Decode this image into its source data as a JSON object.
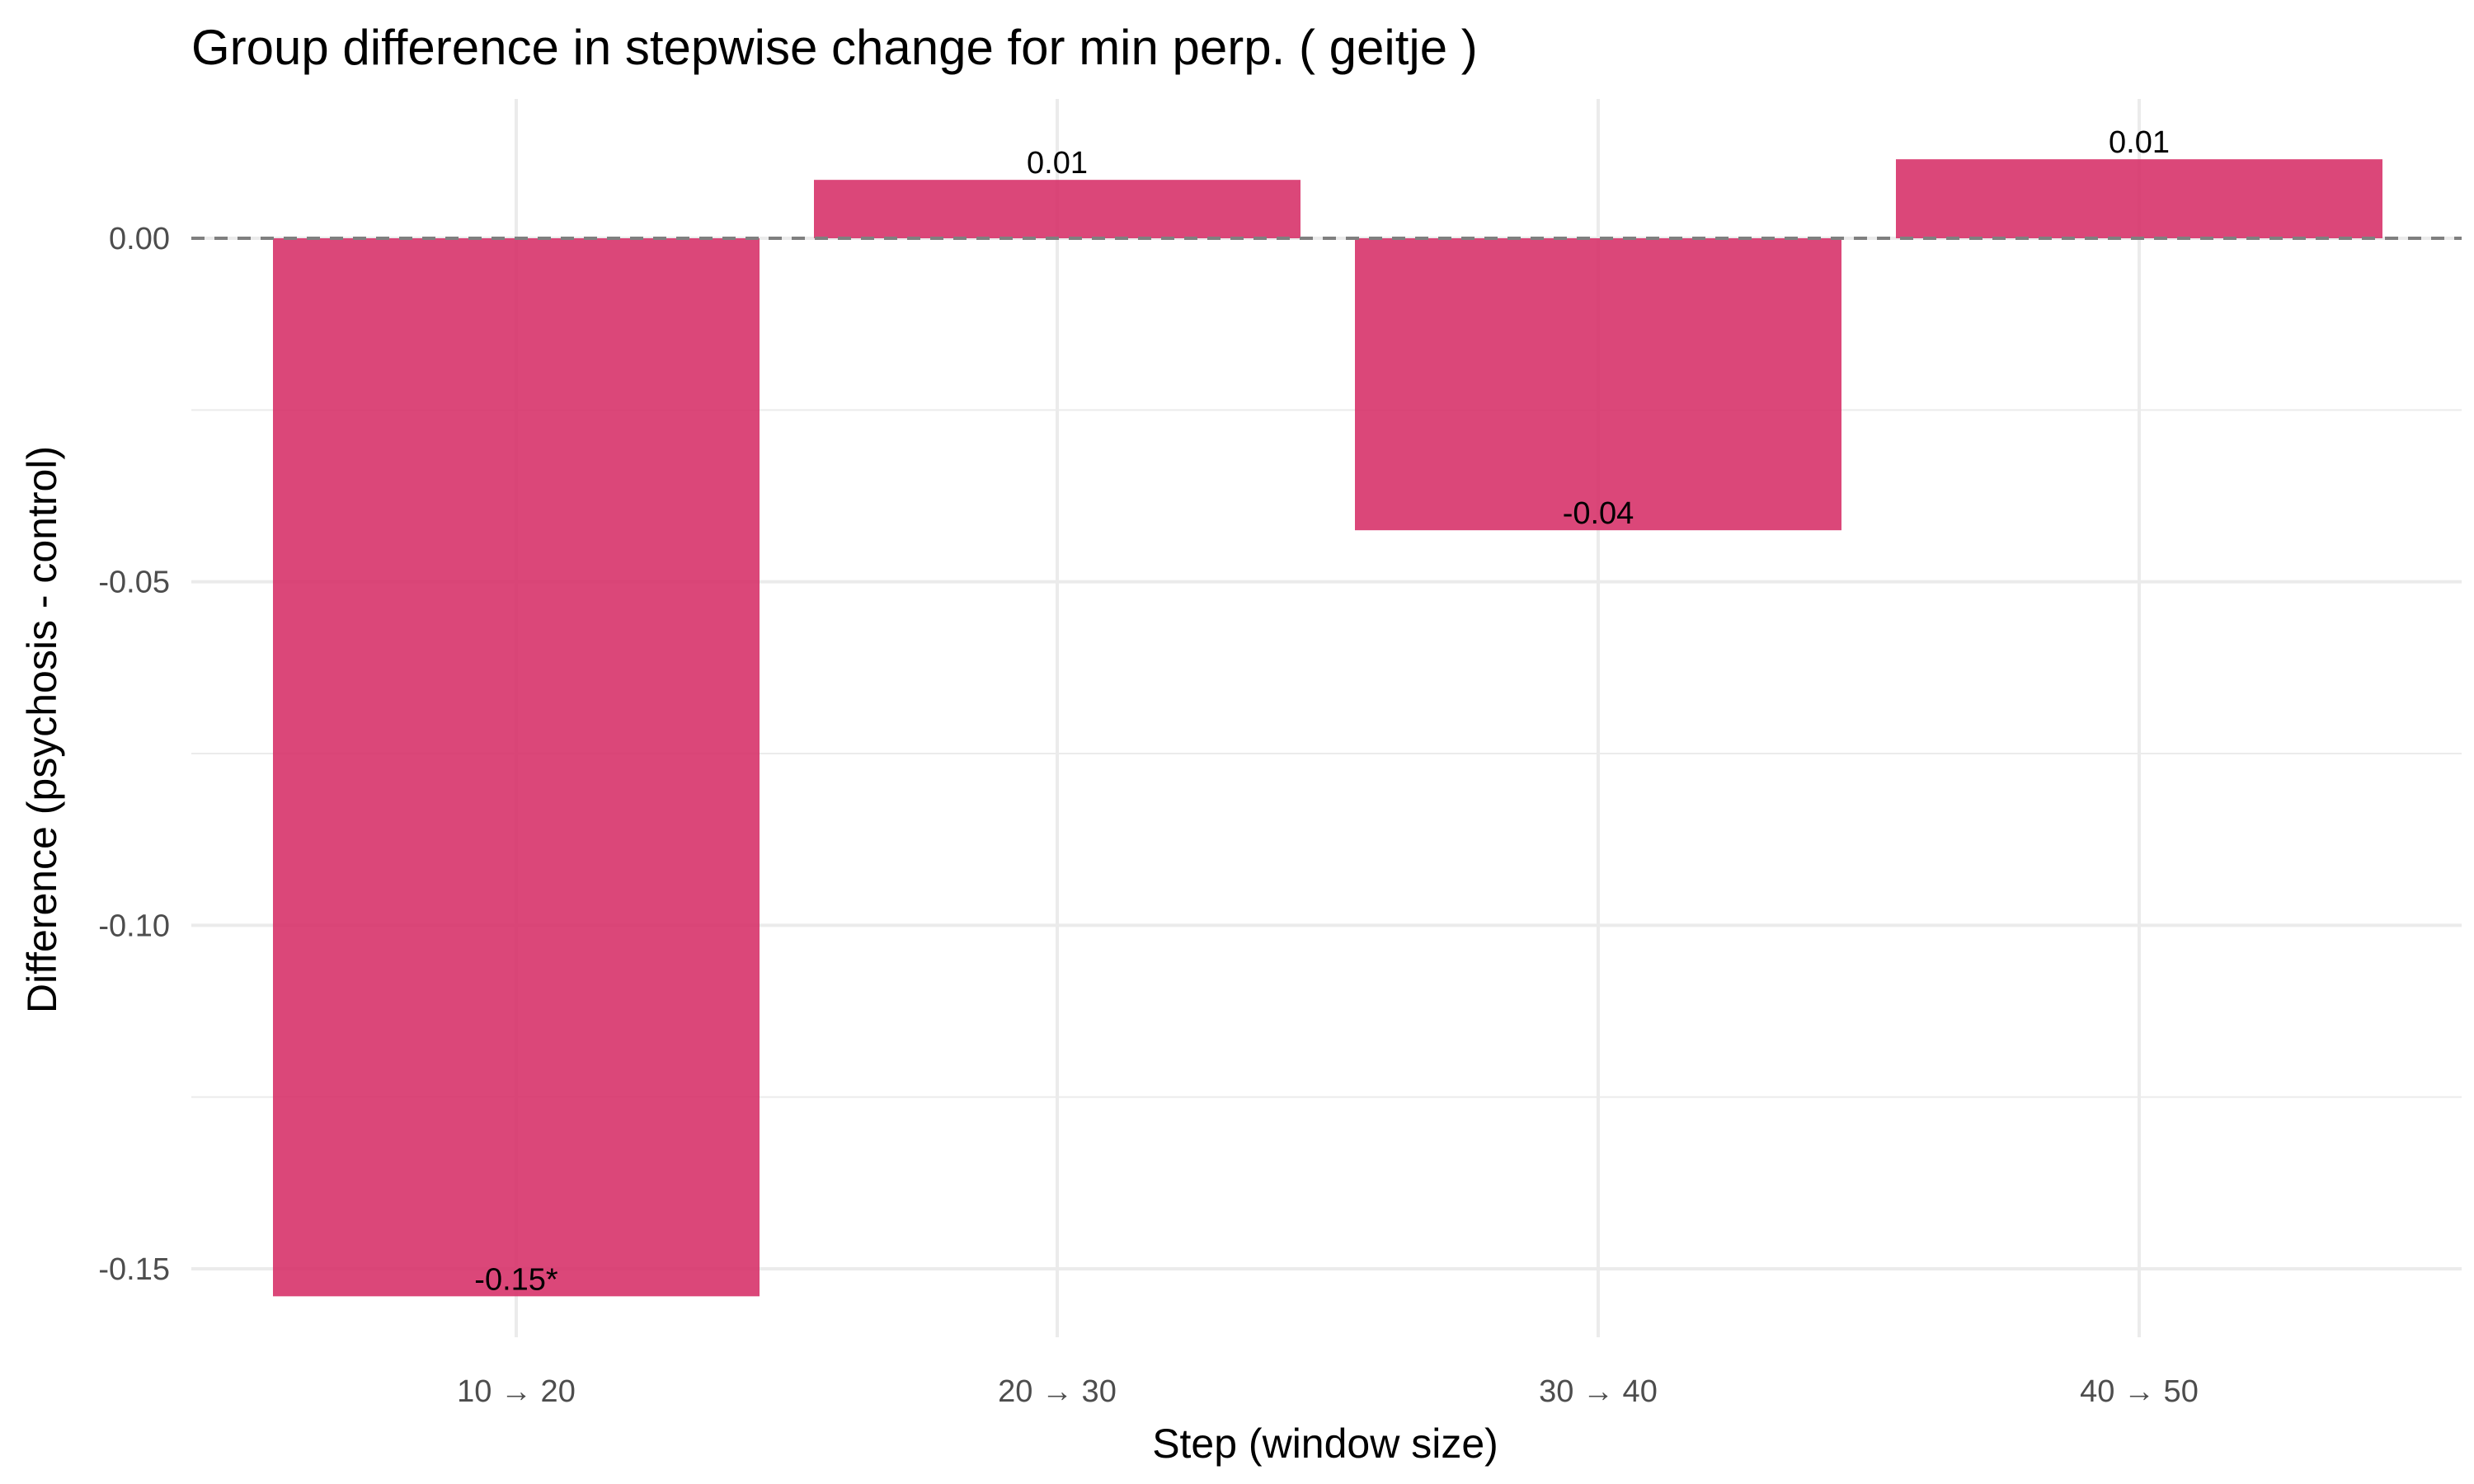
{
  "chart_data": {
    "type": "bar",
    "title": "Group difference in stepwise change for min perp. ( geitje )",
    "xlabel": "Step (window size)",
    "ylabel": "Difference (psychosis - control)",
    "categories": [
      "10 → 20",
      "20 → 30",
      "30 → 40",
      "40 → 50"
    ],
    "values": [
      -0.154,
      0.0085,
      -0.0425,
      0.0115
    ],
    "data_labels": [
      "-0.15*",
      "0.01",
      "-0.04",
      "0.01"
    ],
    "ylim": [
      -0.16,
      0.02
    ],
    "y_ticks": [
      0.0,
      -0.05,
      -0.1,
      -0.15
    ],
    "y_tick_labels": [
      "0.00",
      "-0.05",
      "-0.10",
      "-0.15"
    ],
    "reference_line": 0,
    "grid": true,
    "legend": "none",
    "colors": {
      "bar": "#d7336a",
      "grid": "#ebebeb",
      "reference_line": "#7f7f7f"
    }
  }
}
